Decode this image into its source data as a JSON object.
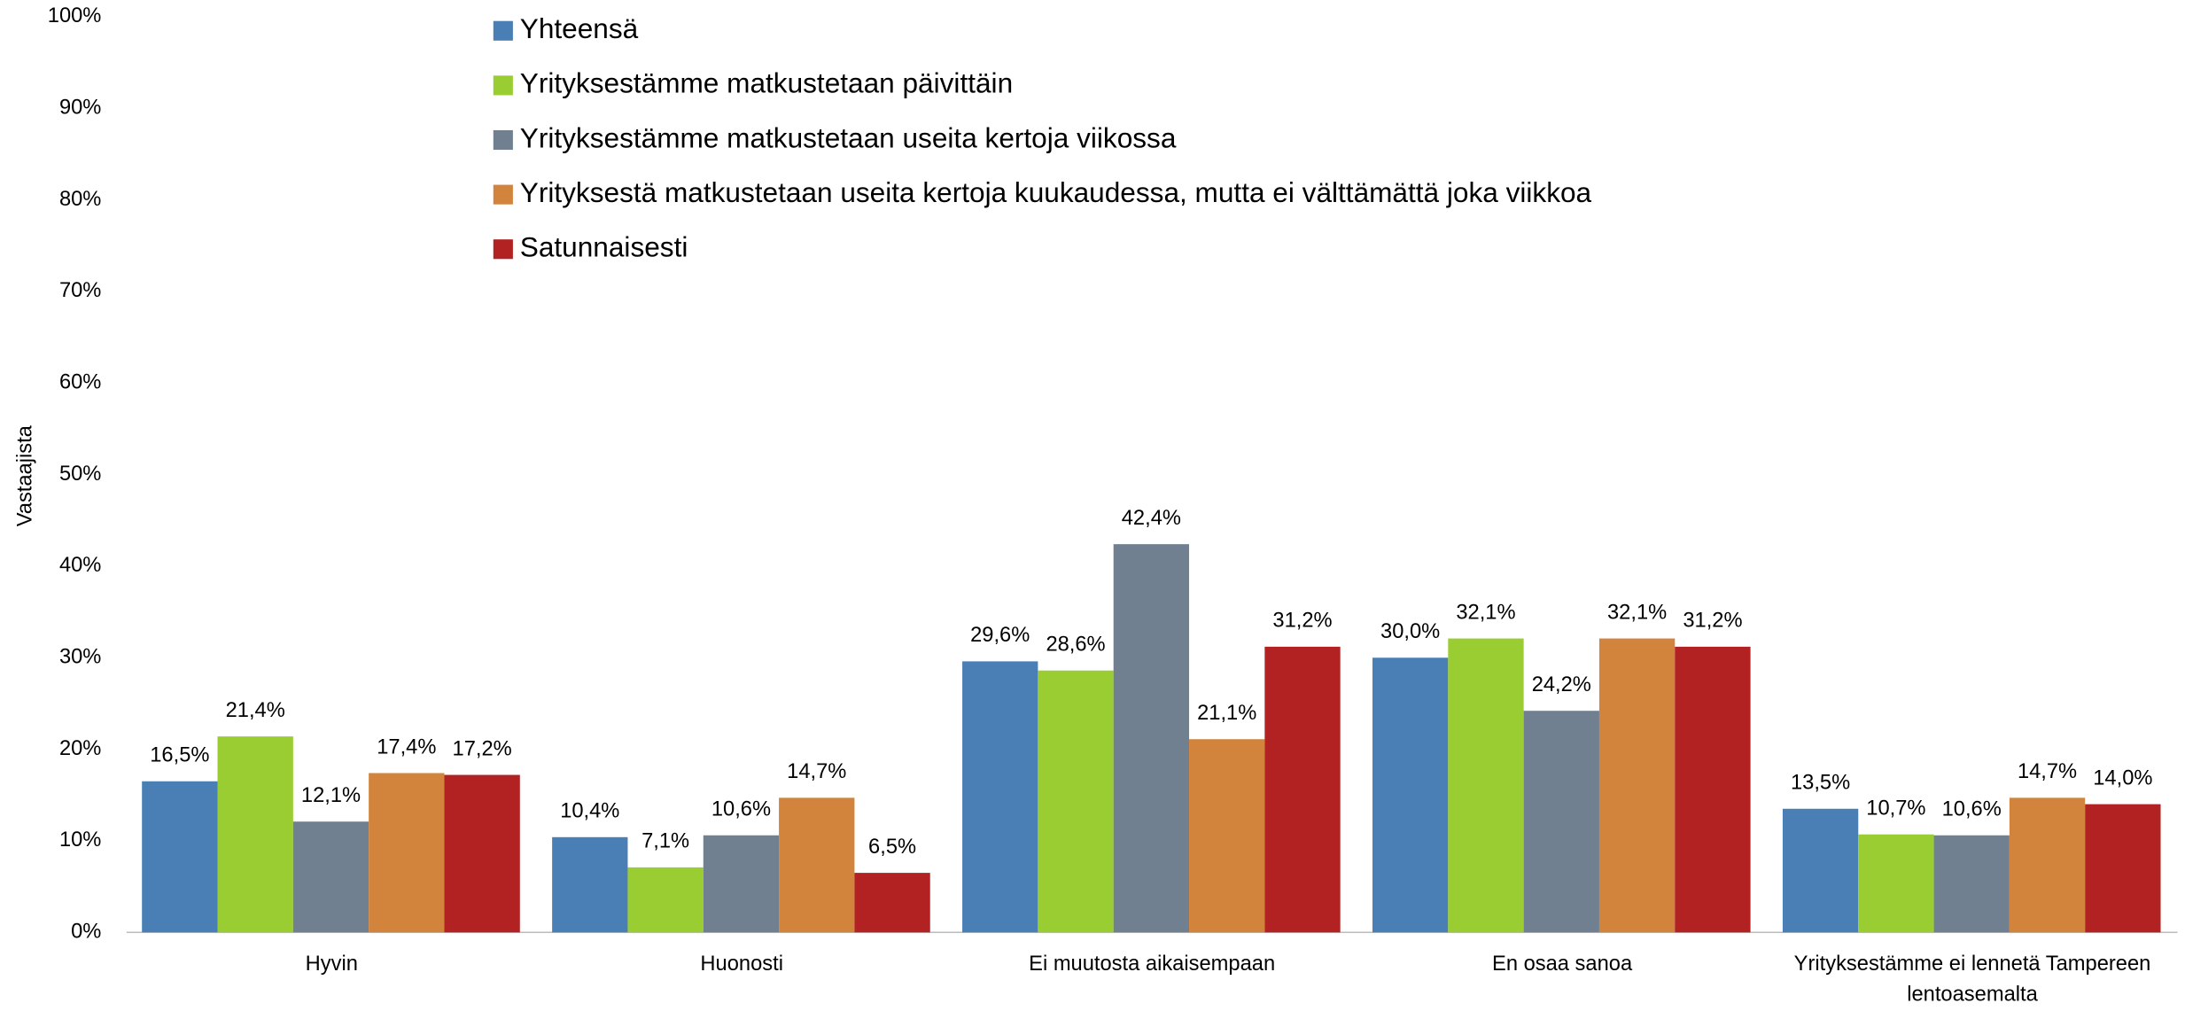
{
  "chart_data": {
    "type": "bar",
    "y_label": "Vastaajista",
    "categories": [
      "Hyvin",
      "Huonosti",
      "Ei muutosta aikaisempaan",
      "En osaa sanoa",
      "Yrityksestämme ei lennetä Tampereen lentoasemalta"
    ],
    "series": [
      {
        "name": "Yhteensä",
        "color": "#4a7fb5",
        "values": [
          16.5,
          10.4,
          29.6,
          30.0,
          13.5
        ],
        "value_labels": [
          "16,5%",
          "10,4%",
          "29,6%",
          "30,0%",
          "13,5%"
        ]
      },
      {
        "name": "Yrityksestämme matkustetaan päivittäin",
        "color": "#9acd32",
        "values": [
          21.4,
          7.1,
          28.6,
          32.1,
          10.7
        ],
        "value_labels": [
          "21,4%",
          "7,1%",
          "28,6%",
          "32,1%",
          "10,7%"
        ]
      },
      {
        "name": "Yrityksestämme matkustetaan useita kertoja viikossa",
        "color": "#708090",
        "values": [
          12.1,
          10.6,
          42.4,
          24.2,
          10.6
        ],
        "value_labels": [
          "12,1%",
          "10,6%",
          "42,4%",
          "24,2%",
          "10,6%"
        ]
      },
      {
        "name": "Yrityksestä matkustetaan useita kertoja kuukaudessa, mutta ei välttämättä joka viikkoa",
        "color": "#d2843c",
        "values": [
          17.4,
          14.7,
          21.1,
          32.1,
          14.7
        ],
        "value_labels": [
          "17,4%",
          "14,7%",
          "21,1%",
          "32,1%",
          "14,7%"
        ]
      },
      {
        "name": "Satunnaisesti",
        "color": "#b22222",
        "values": [
          17.2,
          6.5,
          31.2,
          31.2,
          14.0
        ],
        "value_labels": [
          "17,2%",
          "6,5%",
          "31,2%",
          "31,2%",
          "14,0%"
        ]
      }
    ],
    "ylim": [
      0,
      100
    ],
    "yticks": [
      {
        "value": 0,
        "label": "0%"
      },
      {
        "value": 10,
        "label": "10%"
      },
      {
        "value": 20,
        "label": "20%"
      },
      {
        "value": 30,
        "label": "30%"
      },
      {
        "value": 40,
        "label": "40%"
      },
      {
        "value": 50,
        "label": "50%"
      },
      {
        "value": 60,
        "label": "60%"
      },
      {
        "value": 70,
        "label": "70%"
      },
      {
        "value": 80,
        "label": "80%"
      },
      {
        "value": 90,
        "label": "90%"
      },
      {
        "value": 100,
        "label": "100%"
      }
    ],
    "grid": false,
    "legend": "top"
  }
}
